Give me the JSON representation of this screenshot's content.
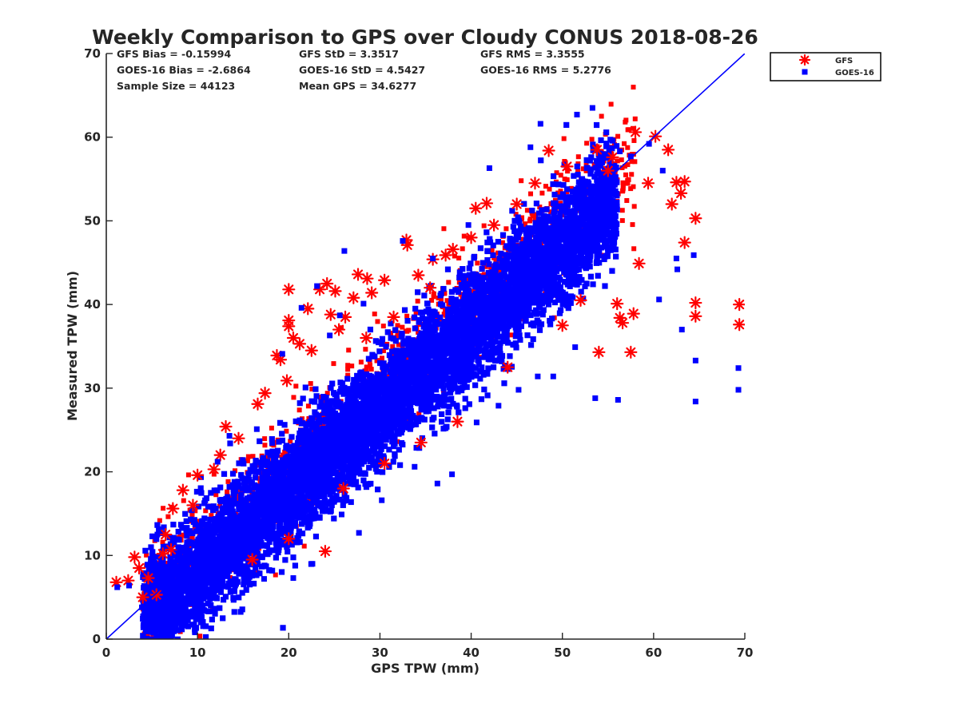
{
  "chart_data": {
    "type": "scatter",
    "title": "Weekly Comparison to GPS over Cloudy CONUS 2018-08-26",
    "xlabel": "GPS TPW (mm)",
    "ylabel": "Measured TPW (mm)",
    "xlim": [
      0,
      70
    ],
    "ylim": [
      0,
      70
    ],
    "xticks": [
      0,
      10,
      20,
      30,
      40,
      50,
      60,
      70
    ],
    "yticks": [
      0,
      10,
      20,
      30,
      40,
      50,
      60,
      70
    ],
    "grid": false,
    "legend_position": "outside-top-right",
    "reference_line": {
      "type": "one-to-one",
      "from": [
        0,
        0
      ],
      "to": [
        70,
        70
      ],
      "color": "#0000ff"
    },
    "stats": [
      [
        "GFS Bias = -0.15994",
        "GFS StD = 3.3517",
        "GFS RMS = 3.3555"
      ],
      [
        "GOES-16 Bias = -2.6864",
        "GOES-16 StD = 4.5427",
        "GOES-16 RMS = 5.2776"
      ],
      [
        "Sample Size = 44123",
        "Mean GPS = 34.6277"
      ]
    ],
    "series": [
      {
        "name": "GFS",
        "marker": "asterisk",
        "color": "#ff0000",
        "points": [
          [
            1.1,
            6.8
          ],
          [
            2.4,
            7.0
          ],
          [
            3.1,
            9.8
          ],
          [
            3.6,
            8.5
          ],
          [
            4.0,
            5.0
          ],
          [
            4.6,
            7.3
          ],
          [
            5.5,
            5.3
          ],
          [
            6.2,
            10.2
          ],
          [
            7.1,
            10.7
          ],
          [
            7.3,
            15.6
          ],
          [
            8.4,
            17.8
          ],
          [
            10.0,
            19.6
          ],
          [
            11.8,
            20.3
          ],
          [
            13.1,
            25.4
          ],
          [
            16.6,
            28.1
          ],
          [
            17.4,
            29.4
          ],
          [
            18.7,
            33.9
          ],
          [
            19.1,
            33.4
          ],
          [
            19.8,
            30.9
          ],
          [
            20.0,
            41.8
          ],
          [
            20.0,
            38.1
          ],
          [
            20.0,
            37.4
          ],
          [
            21.2,
            35.3
          ],
          [
            22.1,
            39.5
          ],
          [
            23.4,
            41.8
          ],
          [
            24.2,
            42.5
          ],
          [
            24.6,
            38.8
          ],
          [
            25.1,
            41.6
          ],
          [
            26.2,
            38.5
          ],
          [
            27.1,
            40.8
          ],
          [
            27.6,
            43.6
          ],
          [
            28.6,
            43.1
          ],
          [
            29.1,
            41.4
          ],
          [
            30.5,
            42.9
          ],
          [
            32.9,
            47.7
          ],
          [
            33.0,
            47.1
          ],
          [
            34.2,
            43.5
          ],
          [
            35.8,
            45.4
          ],
          [
            37.2,
            45.9
          ],
          [
            38.0,
            46.6
          ],
          [
            40.5,
            51.5
          ],
          [
            41.7,
            52.1
          ],
          [
            48.5,
            58.4
          ],
          [
            53.8,
            58.5
          ],
          [
            54.0,
            34.3
          ],
          [
            55.5,
            57.6
          ],
          [
            56.0,
            40.1
          ],
          [
            56.3,
            38.4
          ],
          [
            56.6,
            37.8
          ],
          [
            57.5,
            34.3
          ],
          [
            57.8,
            38.9
          ],
          [
            58.0,
            60.6
          ],
          [
            58.4,
            44.9
          ],
          [
            59.4,
            54.5
          ],
          [
            60.2,
            60.1
          ],
          [
            61.6,
            58.5
          ],
          [
            62.0,
            52.0
          ],
          [
            62.5,
            54.6
          ],
          [
            63.0,
            53.3
          ],
          [
            63.4,
            47.4
          ],
          [
            63.4,
            54.7
          ],
          [
            64.6,
            50.3
          ],
          [
            64.6,
            40.2
          ],
          [
            64.6,
            38.6
          ],
          [
            69.4,
            40.0
          ],
          [
            69.4,
            37.6
          ],
          [
            12.5,
            22.0
          ],
          [
            14.5,
            24.0
          ],
          [
            9.5,
            16.0
          ],
          [
            6.5,
            12.5
          ],
          [
            20.5,
            36.0
          ],
          [
            22.5,
            34.5
          ],
          [
            25.5,
            37.0
          ],
          [
            42.5,
            49.5
          ],
          [
            45.0,
            52.0
          ],
          [
            50.5,
            56.5
          ],
          [
            55.0,
            56.0
          ],
          [
            52.0,
            40.5
          ],
          [
            50.0,
            37.5
          ],
          [
            44.0,
            32.5
          ],
          [
            38.5,
            26.0
          ],
          [
            34.5,
            23.5
          ],
          [
            30.5,
            21.0
          ],
          [
            26.0,
            18.0
          ],
          [
            20.0,
            12.0
          ],
          [
            24.0,
            10.5
          ],
          [
            16.0,
            9.5
          ],
          [
            35.5,
            42.0
          ],
          [
            31.5,
            38.5
          ],
          [
            28.5,
            36.0
          ],
          [
            40.0,
            48.0
          ],
          [
            47.0,
            54.5
          ]
        ]
      },
      {
        "name": "GOES-16",
        "marker": "square",
        "color": "#0000ff",
        "points": [
          [
            1.2,
            6.2
          ],
          [
            2.5,
            6.4
          ],
          [
            3.9,
            3.8
          ],
          [
            4.6,
            4.1
          ],
          [
            5.0,
            3.9
          ],
          [
            5.6,
            12.5
          ],
          [
            6.4,
            7.0
          ],
          [
            7.9,
            11.0
          ],
          [
            9.2,
            5.3
          ],
          [
            10.5,
            8.0
          ],
          [
            12.2,
            21.2
          ],
          [
            13.5,
            24.3
          ],
          [
            16.5,
            25.1
          ],
          [
            19.3,
            34.1
          ],
          [
            21.4,
            39.6
          ],
          [
            23.1,
            42.2
          ],
          [
            24.5,
            36.3
          ],
          [
            25.6,
            38.7
          ],
          [
            26.1,
            46.4
          ],
          [
            28.2,
            40.1
          ],
          [
            32.5,
            47.6
          ],
          [
            35.8,
            45.5
          ],
          [
            39.7,
            49.5
          ],
          [
            42.0,
            56.3
          ],
          [
            46.5,
            58.8
          ],
          [
            47.6,
            61.6
          ],
          [
            51.6,
            62.7
          ],
          [
            53.3,
            63.5
          ],
          [
            54.8,
            58.9
          ],
          [
            56.3,
            58.3
          ],
          [
            57.5,
            57.7
          ],
          [
            59.5,
            59.2
          ],
          [
            61.0,
            56.0
          ],
          [
            62.5,
            45.5
          ],
          [
            62.6,
            44.2
          ],
          [
            63.1,
            37.0
          ],
          [
            64.4,
            45.9
          ],
          [
            64.6,
            33.3
          ],
          [
            64.6,
            28.4
          ],
          [
            69.3,
            32.4
          ],
          [
            69.3,
            29.8
          ],
          [
            60.6,
            40.6
          ],
          [
            56.1,
            28.6
          ],
          [
            53.6,
            28.8
          ],
          [
            51.4,
            34.9
          ],
          [
            49.0,
            31.4
          ],
          [
            47.3,
            31.4
          ],
          [
            45.2,
            29.8
          ],
          [
            43.0,
            27.9
          ],
          [
            40.6,
            25.9
          ],
          [
            37.9,
            19.7
          ],
          [
            36.3,
            18.6
          ],
          [
            33.8,
            20.6
          ],
          [
            30.2,
            16.6
          ],
          [
            27.7,
            12.7
          ],
          [
            25.8,
            14.9
          ],
          [
            22.6,
            9.0
          ],
          [
            20.5,
            7.3
          ],
          [
            17.3,
            7.2
          ],
          [
            13.5,
            6.5
          ],
          [
            11.2,
            6.7
          ]
        ]
      }
    ]
  }
}
